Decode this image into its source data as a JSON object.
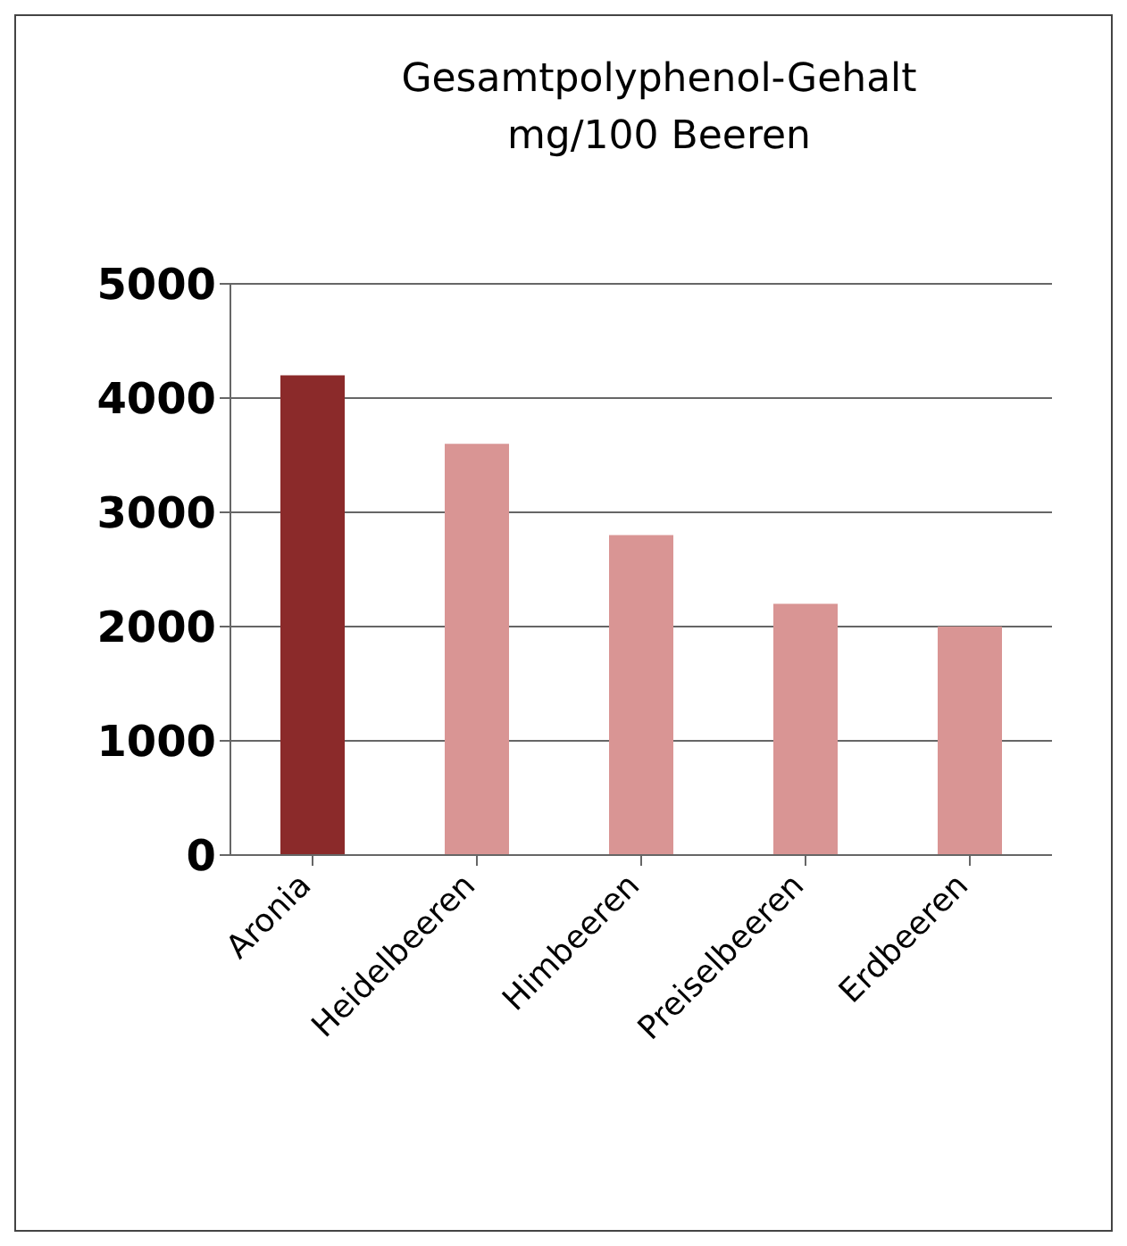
{
  "chart_data": {
    "type": "bar",
    "title": "Gesamtpolyphenol-Gehalt\nmg/100 Beeren",
    "categories": [
      "Aronia",
      "Heidelbeeren",
      "Himbeeren",
      "Preiselbeeren",
      "Erdbeeren"
    ],
    "values": [
      4200,
      3600,
      2800,
      2200,
      2000
    ],
    "colors": [
      "#8b2a2a",
      "#d99594",
      "#d99594",
      "#d99594",
      "#d99594"
    ],
    "ylim": [
      0,
      5000
    ],
    "yticks": [
      0,
      1000,
      2000,
      3000,
      4000,
      5000
    ],
    "grid": "y"
  }
}
